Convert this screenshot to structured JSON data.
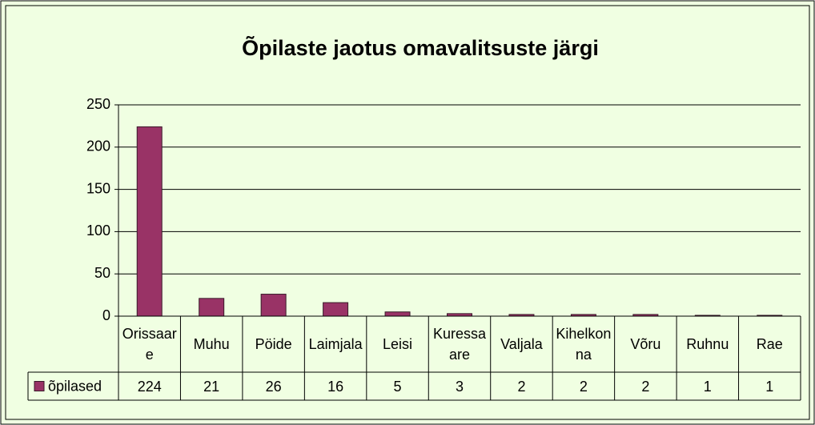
{
  "chart_data": {
    "type": "bar",
    "title": "Õpilaste jaotus omavalitsuste järgi",
    "categories": [
      "Orissaare",
      "Muhu",
      "Pöide",
      "Laimjala",
      "Leisi",
      "Kuressaare",
      "Valjala",
      "Kihelkonna",
      "Võru",
      "Ruhnu",
      "Rae"
    ],
    "series": [
      {
        "name": "õpilased",
        "color": "#993366",
        "values": [
          224,
          21,
          26,
          16,
          5,
          3,
          2,
          2,
          2,
          1,
          1
        ]
      }
    ],
    "ylim": [
      0,
      250
    ],
    "yticks": [
      0,
      50,
      100,
      150,
      200,
      250
    ],
    "grid": true
  }
}
